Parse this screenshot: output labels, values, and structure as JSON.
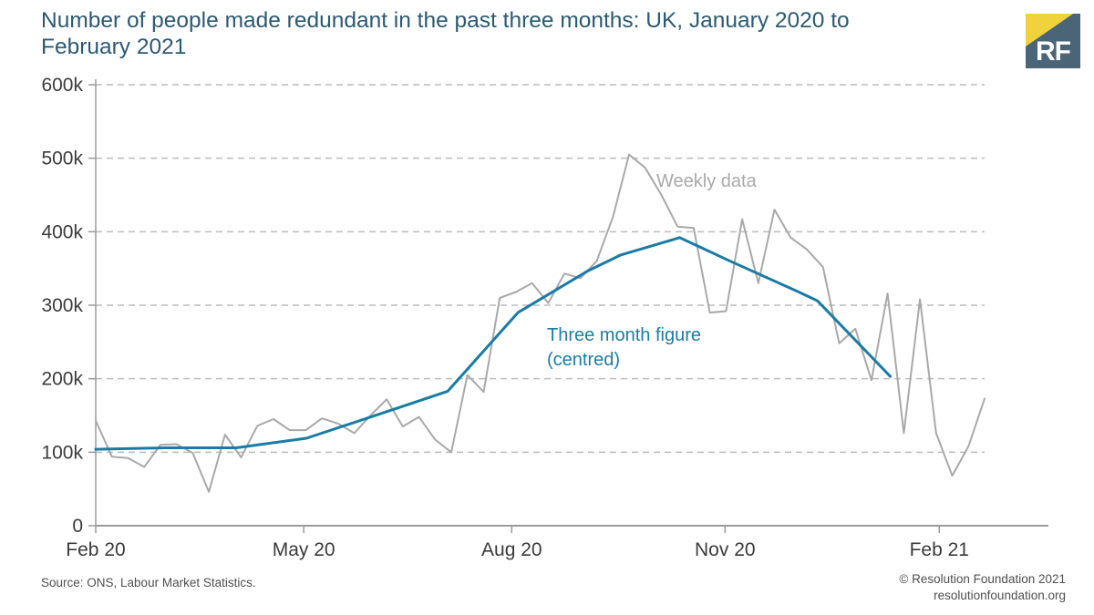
{
  "theme": {
    "title_color": "#2b5a73",
    "accent_blue": "#1a7ca6",
    "gray_line": "#a9a9a9",
    "axis_text": "#3b3b3b",
    "grid_color": "#bcbcbc",
    "axis_line": "#9a9a9a",
    "footer_text": "#4f4f4f",
    "logo_bg": "#4a6577",
    "logo_yellow": "#f0d23d"
  },
  "header": {
    "title_line1": "Number of people made redundant in the past three months: UK, January 2020 to",
    "title_line2": "February 2021"
  },
  "logo": {
    "text": "RF"
  },
  "annotations": {
    "weekly_label": "Weekly data",
    "monthly_label_line1": "Three month figure",
    "monthly_label_line2": "(centred)"
  },
  "footer": {
    "source": "Source: ONS, Labour Market Statistics.",
    "copyright": "© Resolution Foundation 2021",
    "website": "resolutionfoundation.org"
  },
  "chart_data": {
    "type": "line",
    "title": "Number of people made redundant in the past three months: UK, January 2020 to February 2021",
    "unit": "people, thousands (k)",
    "ylim": [
      0,
      600000
    ],
    "grid": "horizontal-dashed",
    "legend_position": "inline-annotations",
    "y_ticks": [
      {
        "label": "600k",
        "value": 600
      },
      {
        "label": "500k",
        "value": 500
      },
      {
        "label": "400k",
        "value": 400
      },
      {
        "label": "300k",
        "value": 300
      },
      {
        "label": "200k",
        "value": 200
      },
      {
        "label": "100k",
        "value": 100
      },
      {
        "label": "0",
        "value": 0
      }
    ],
    "x_ticks": [
      {
        "label": "Feb 20",
        "f": 0.0
      },
      {
        "label": "May 20",
        "f": 0.234
      },
      {
        "label": "Aug 20",
        "f": 0.468
      },
      {
        "label": "Nov 20",
        "f": 0.708
      },
      {
        "label": "Feb 21",
        "f": 0.949
      }
    ],
    "series": [
      {
        "name": "Weekly data",
        "color": "#a9a9a9",
        "width": 2,
        "values_unit": "thousands",
        "values": [
          143,
          94,
          92,
          80,
          110,
          111,
          99,
          46,
          124,
          93,
          136,
          145,
          130,
          130,
          146,
          139,
          126,
          150,
          172,
          135,
          148,
          117,
          100,
          205,
          182,
          310,
          318,
          330,
          303,
          343,
          337,
          360,
          420,
          505,
          487,
          450,
          407,
          405,
          290,
          292,
          417,
          330,
          430,
          392,
          376,
          352,
          248,
          268,
          198,
          316,
          126,
          308,
          126,
          68,
          108,
          173
        ]
      },
      {
        "name": "Three month figure (centred)",
        "color": "#1a7ca6",
        "width": 3,
        "values_unit": "thousands",
        "points": [
          [
            0,
            104
          ],
          [
            0.079,
            106
          ],
          [
            0.158,
            106
          ],
          [
            0.237,
            119
          ],
          [
            0.317,
            151
          ],
          [
            0.396,
            183
          ],
          [
            0.475,
            290
          ],
          [
            0.554,
            347
          ],
          [
            0.59,
            368
          ],
          [
            0.657,
            392
          ],
          [
            0.712,
            361
          ],
          [
            0.791,
            318
          ],
          [
            0.812,
            306
          ],
          [
            0.894,
            203
          ]
        ]
      }
    ]
  }
}
